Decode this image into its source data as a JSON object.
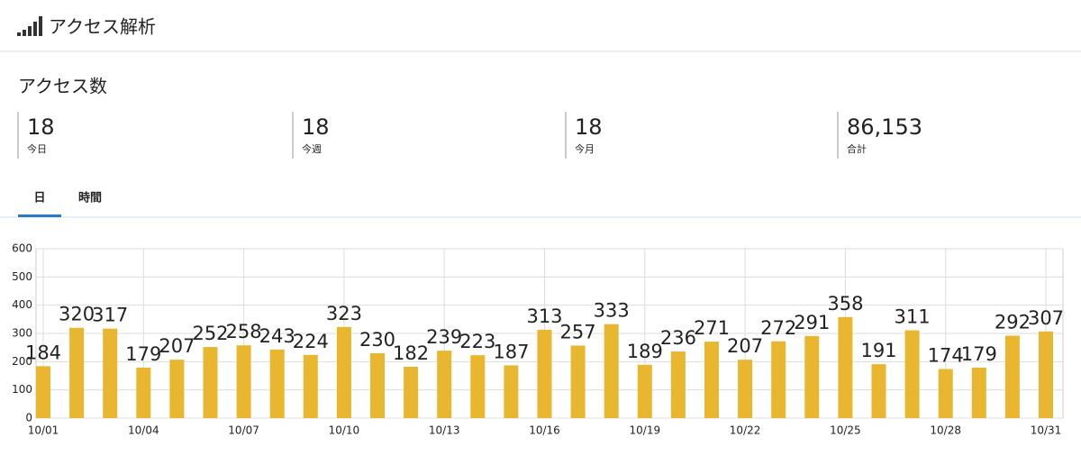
{
  "header": {
    "title": "アクセス解析"
  },
  "section_title": "アクセス数",
  "stats": [
    {
      "value": "18",
      "label": "今日"
    },
    {
      "value": "18",
      "label": "今週"
    },
    {
      "value": "18",
      "label": "今月"
    },
    {
      "value": "86,153",
      "label": "合計"
    }
  ],
  "tabs": [
    "日",
    "時間"
  ],
  "chart_data": {
    "type": "bar",
    "categories": [
      "10/01",
      null,
      null,
      "10/04",
      null,
      null,
      "10/07",
      null,
      null,
      "10/10",
      null,
      null,
      "10/13",
      null,
      null,
      "10/16",
      null,
      null,
      "10/19",
      null,
      null,
      "10/22",
      null,
      null,
      "10/25",
      null,
      null,
      "10/28",
      null,
      null,
      "10/31"
    ],
    "values": [
      184,
      320,
      317,
      179,
      207,
      252,
      258,
      243,
      224,
      323,
      230,
      182,
      239,
      223,
      187,
      313,
      257,
      333,
      189,
      236,
      271,
      207,
      272,
      291,
      358,
      191,
      311,
      174,
      179,
      292,
      307
    ],
    "color": "#e9b630",
    "ylim": [
      0,
      600
    ],
    "yticks": [
      0,
      100,
      200,
      300,
      400,
      500,
      600
    ],
    "grid": true
  }
}
